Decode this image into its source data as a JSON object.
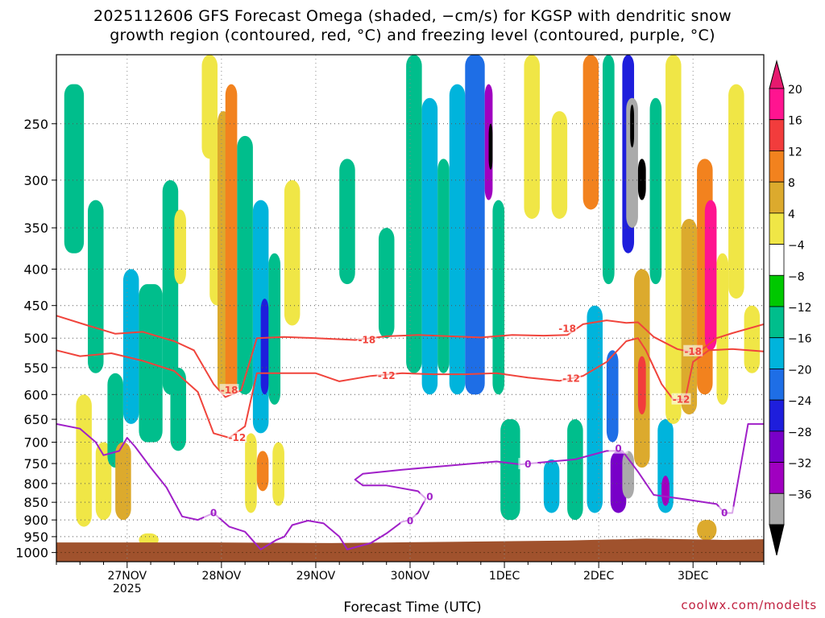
{
  "title_line1": "2025112606 GFS Forecast Omega (shaded, −cm/s) for KGSP with dendritic snow",
  "title_line2": "growth region (contoured, red, °C) and freezing level (contoured, purple, °C)",
  "credit": "coolwx.com/modelts",
  "colors": {
    "ground": "#a0522d",
    "dendritic_contour": "#f0443c",
    "freezing_contour": "#a020c8",
    "grid": "#555555"
  },
  "chart_data": {
    "type": "heatmap",
    "title": "2025112606 GFS Forecast Omega (shaded, −cm/s) for KGSP with dendritic snow growth region (contoured, red, °C) and freezing level (contoured, purple, °C)",
    "xlabel": "Forecast Time (UTC)",
    "ylabel": "",
    "grid": true,
    "y_axis": {
      "unit": "hPa",
      "inverted": true,
      "scale": "log",
      "ticks": [
        250,
        300,
        350,
        400,
        450,
        500,
        550,
        600,
        650,
        700,
        750,
        800,
        850,
        900,
        950,
        1000
      ]
    },
    "x_axis": {
      "unit": "hours since 2025-11-26 06 UTC",
      "range": [
        0,
        180
      ],
      "ticks": [
        {
          "hour": 18,
          "label": "27NOV",
          "sublabel": "2025"
        },
        {
          "hour": 42,
          "label": "28NOV"
        },
        {
          "hour": 66,
          "label": "29NOV"
        },
        {
          "hour": 90,
          "label": "30NOV"
        },
        {
          "hour": 114,
          "label": "1DEC"
        },
        {
          "hour": 138,
          "label": "2DEC"
        },
        {
          "hour": 162,
          "label": "3DEC"
        }
      ]
    },
    "colorbar": {
      "levels": [
        {
          "label": "20",
          "color": "#ff1490"
        },
        {
          "label": "16",
          "color": "#f23c3c"
        },
        {
          "label": "12",
          "color": "#f2821e"
        },
        {
          "label": "8",
          "color": "#dcaa2d"
        },
        {
          "label": "4",
          "color": "#f0e646"
        },
        {
          "label": "−4",
          "color": "#ffffff"
        },
        {
          "label": "−8",
          "color": "#00c800"
        },
        {
          "label": "−12",
          "color": "#00be8c"
        },
        {
          "label": "−16",
          "color": "#00b4dc"
        },
        {
          "label": "−20",
          "color": "#1e6ee6"
        },
        {
          "label": "−24",
          "color": "#1e1edc"
        },
        {
          "label": "−28",
          "color": "#7800c8"
        },
        {
          "label": "−32",
          "color": "#a000c0"
        },
        {
          "label": "−36",
          "color": "#aaaaaa"
        }
      ],
      "arrow_top_color": "#e6196e",
      "arrow_bottom_color": "#000000"
    },
    "omega_cells": [
      {
        "t0": 2,
        "t1": 7,
        "p0": 220,
        "p1": 380,
        "value": -8
      },
      {
        "t0": 5,
        "t1": 9,
        "p0": 600,
        "p1": 920,
        "value": 6
      },
      {
        "t0": 8,
        "t1": 12,
        "p0": 320,
        "p1": 560,
        "value": -8
      },
      {
        "t0": 10,
        "t1": 14,
        "p0": 700,
        "p1": 900,
        "value": 6
      },
      {
        "t0": 13,
        "t1": 17,
        "p0": 560,
        "p1": 760,
        "value": -10
      },
      {
        "t0": 15,
        "t1": 19,
        "p0": 700,
        "p1": 900,
        "value": 9
      },
      {
        "t0": 17,
        "t1": 21,
        "p0": 400,
        "p1": 660,
        "value": -12
      },
      {
        "t0": 21,
        "t1": 27,
        "p0": 420,
        "p1": 700,
        "value": -9
      },
      {
        "t0": 21,
        "t1": 26,
        "p0": 940,
        "p1": 980,
        "value": 6
      },
      {
        "t0": 27,
        "t1": 31,
        "p0": 300,
        "p1": 600,
        "value": -8
      },
      {
        "t0": 29,
        "t1": 33,
        "p0": 550,
        "p1": 720,
        "value": -8
      },
      {
        "t0": 30,
        "t1": 33,
        "p0": 330,
        "p1": 420,
        "value": 5
      },
      {
        "t0": 37,
        "t1": 41,
        "p0": 200,
        "p1": 280,
        "value": 5
      },
      {
        "t0": 39,
        "t1": 43,
        "p0": 250,
        "p1": 450,
        "value": 6
      },
      {
        "t0": 41,
        "t1": 44,
        "p0": 240,
        "p1": 600,
        "value": 10
      },
      {
        "t0": 43,
        "t1": 46,
        "p0": 220,
        "p1": 600,
        "value": 14
      },
      {
        "t0": 46,
        "t1": 50,
        "p0": 260,
        "p1": 600,
        "value": -8
      },
      {
        "t0": 50,
        "t1": 54,
        "p0": 320,
        "p1": 680,
        "value": -14
      },
      {
        "t0": 52,
        "t1": 54,
        "p0": 440,
        "p1": 600,
        "value": -22
      },
      {
        "t0": 54,
        "t1": 57,
        "p0": 380,
        "p1": 620,
        "value": -11
      },
      {
        "t0": 48,
        "t1": 51,
        "p0": 680,
        "p1": 880,
        "value": 6
      },
      {
        "t0": 51,
        "t1": 54,
        "p0": 720,
        "p1": 820,
        "value": 12
      },
      {
        "t0": 55,
        "t1": 58,
        "p0": 700,
        "p1": 860,
        "value": 6
      },
      {
        "t0": 58,
        "t1": 62,
        "p0": 300,
        "p1": 480,
        "value": 6
      },
      {
        "t0": 72,
        "t1": 76,
        "p0": 280,
        "p1": 420,
        "value": -8
      },
      {
        "t0": 82,
        "t1": 86,
        "p0": 350,
        "p1": 500,
        "value": -9
      },
      {
        "t0": 89,
        "t1": 93,
        "p0": 200,
        "p1": 560,
        "value": -10
      },
      {
        "t0": 93,
        "t1": 97,
        "p0": 230,
        "p1": 600,
        "value": -12
      },
      {
        "t0": 97,
        "t1": 100,
        "p0": 280,
        "p1": 560,
        "value": -11
      },
      {
        "t0": 100,
        "t1": 104,
        "p0": 220,
        "p1": 600,
        "value": -13
      },
      {
        "t0": 104,
        "t1": 109,
        "p0": 200,
        "p1": 600,
        "value": -16
      },
      {
        "t0": 109,
        "t1": 111,
        "p0": 220,
        "p1": 320,
        "value": -30
      },
      {
        "t0": 110,
        "t1": 111,
        "p0": 250,
        "p1": 290,
        "value": -40
      },
      {
        "t0": 111,
        "t1": 114,
        "p0": 320,
        "p1": 600,
        "value": -9
      },
      {
        "t0": 113,
        "t1": 118,
        "p0": 650,
        "p1": 900,
        "value": -8
      },
      {
        "t0": 119,
        "t1": 123,
        "p0": 200,
        "p1": 340,
        "value": 5
      },
      {
        "t0": 126,
        "t1": 130,
        "p0": 240,
        "p1": 340,
        "value": 6
      },
      {
        "t0": 124,
        "t1": 128,
        "p0": 740,
        "p1": 880,
        "value": -12
      },
      {
        "t0": 130,
        "t1": 134,
        "p0": 650,
        "p1": 900,
        "value": -9
      },
      {
        "t0": 134,
        "t1": 138,
        "p0": 200,
        "p1": 330,
        "value": 13
      },
      {
        "t0": 135,
        "t1": 139,
        "p0": 450,
        "p1": 880,
        "value": -12
      },
      {
        "t0": 139,
        "t1": 142,
        "p0": 200,
        "p1": 420,
        "value": -9
      },
      {
        "t0": 140,
        "t1": 143,
        "p0": 520,
        "p1": 700,
        "value": -18
      },
      {
        "t0": 141,
        "t1": 145,
        "p0": 720,
        "p1": 880,
        "value": -26
      },
      {
        "t0": 144,
        "t1": 147,
        "p0": 200,
        "p1": 380,
        "value": -22
      },
      {
        "t0": 145,
        "t1": 148,
        "p0": 230,
        "p1": 350,
        "value": -33
      },
      {
        "t0": 146,
        "t1": 147,
        "p0": 235,
        "p1": 270,
        "value": -40
      },
      {
        "t0": 144,
        "t1": 147,
        "p0": 720,
        "p1": 840,
        "value": -34
      },
      {
        "t0": 148,
        "t1": 150,
        "p0": 280,
        "p1": 320,
        "value": -40
      },
      {
        "t0": 147,
        "t1": 151,
        "p0": 400,
        "p1": 760,
        "value": 9
      },
      {
        "t0": 148,
        "t1": 150,
        "p0": 530,
        "p1": 640,
        "value": 18
      },
      {
        "t0": 151,
        "t1": 154,
        "p0": 230,
        "p1": 420,
        "value": -10
      },
      {
        "t0": 153,
        "t1": 157,
        "p0": 650,
        "p1": 880,
        "value": -14
      },
      {
        "t0": 154,
        "t1": 156,
        "p0": 780,
        "p1": 860,
        "value": -30
      },
      {
        "t0": 155,
        "t1": 159,
        "p0": 200,
        "p1": 660,
        "value": 7
      },
      {
        "t0": 159,
        "t1": 163,
        "p0": 340,
        "p1": 640,
        "value": 10
      },
      {
        "t0": 163,
        "t1": 167,
        "p0": 280,
        "p1": 600,
        "value": 14
      },
      {
        "t0": 165,
        "t1": 168,
        "p0": 320,
        "p1": 520,
        "value": 21
      },
      {
        "t0": 168,
        "t1": 171,
        "p0": 380,
        "p1": 620,
        "value": 6
      },
      {
        "t0": 171,
        "t1": 175,
        "p0": 220,
        "p1": 440,
        "value": 5
      },
      {
        "t0": 163,
        "t1": 168,
        "p0": 900,
        "p1": 960,
        "value": 9
      },
      {
        "t0": 175,
        "t1": 179,
        "p0": 450,
        "p1": 560,
        "value": 5
      }
    ],
    "dendritic_contours": [
      {
        "label": "-18",
        "points": [
          [
            0,
            465
          ],
          [
            8,
            480
          ],
          [
            15,
            493
          ],
          [
            22,
            490
          ],
          [
            30,
            505
          ],
          [
            35,
            520
          ],
          [
            40,
            580
          ],
          [
            43,
            605
          ],
          [
            47,
            592
          ],
          [
            51,
            500
          ],
          [
            58,
            498
          ],
          [
            66,
            500
          ],
          [
            76,
            503
          ],
          [
            84,
            497
          ],
          [
            92,
            495
          ],
          [
            100,
            497
          ],
          [
            108,
            499
          ],
          [
            116,
            495
          ],
          [
            124,
            496
          ],
          [
            130,
            495
          ],
          [
            134,
            478
          ],
          [
            140,
            472
          ],
          [
            145,
            476
          ],
          [
            148,
            475
          ],
          [
            152,
            498
          ],
          [
            158,
            518
          ],
          [
            163,
            525
          ],
          [
            168,
            500
          ],
          [
            172,
            492
          ],
          [
            180,
            478
          ]
        ],
        "labels_at": [
          [
            44,
            592
          ],
          [
            79,
            503
          ],
          [
            130,
            485
          ],
          [
            162,
            522
          ]
        ]
      },
      {
        "label": "-12",
        "points": [
          [
            0,
            520
          ],
          [
            6,
            530
          ],
          [
            14,
            525
          ],
          [
            22,
            538
          ],
          [
            30,
            556
          ],
          [
            36,
            595
          ],
          [
            40,
            680
          ],
          [
            44,
            690
          ],
          [
            48,
            665
          ],
          [
            51,
            560
          ],
          [
            58,
            560
          ],
          [
            66,
            560
          ],
          [
            72,
            575
          ],
          [
            80,
            565
          ],
          [
            88,
            560
          ],
          [
            96,
            562
          ],
          [
            104,
            562
          ],
          [
            112,
            560
          ],
          [
            120,
            568
          ],
          [
            128,
            574
          ],
          [
            134,
            565
          ],
          [
            140,
            540
          ],
          [
            145,
            505
          ],
          [
            148,
            500
          ],
          [
            150,
            520
          ],
          [
            154,
            580
          ],
          [
            157,
            610
          ],
          [
            160,
            610
          ],
          [
            162,
            540
          ],
          [
            166,
            520
          ],
          [
            172,
            518
          ],
          [
            180,
            522
          ]
        ],
        "labels_at": [
          [
            46,
            690
          ],
          [
            84,
            565
          ],
          [
            131,
            570
          ],
          [
            159,
            610
          ]
        ]
      }
    ],
    "freezing_level_contour": {
      "label": "0",
      "points": [
        [
          0,
          660
        ],
        [
          6,
          670
        ],
        [
          10,
          700
        ],
        [
          12,
          730
        ],
        [
          16,
          720
        ],
        [
          18,
          690
        ],
        [
          20,
          710
        ],
        [
          24,
          760
        ],
        [
          28,
          810
        ],
        [
          32,
          890
        ],
        [
          36,
          900
        ],
        [
          40,
          880
        ],
        [
          44,
          920
        ],
        [
          48,
          935
        ],
        [
          52,
          990
        ],
        [
          56,
          960
        ],
        [
          58,
          950
        ],
        [
          60,
          915
        ],
        [
          64,
          902
        ],
        [
          68,
          910
        ],
        [
          72,
          950
        ],
        [
          74,
          990
        ],
        [
          80,
          970
        ],
        [
          84,
          940
        ],
        [
          88,
          905
        ],
        [
          90,
          900
        ],
        [
          92,
          880
        ],
        [
          94,
          840
        ],
        [
          92,
          820
        ],
        [
          84,
          805
        ],
        [
          78,
          805
        ],
        [
          76,
          790
        ],
        [
          78,
          775
        ],
        [
          88,
          765
        ],
        [
          100,
          755
        ],
        [
          112,
          745
        ],
        [
          118,
          752
        ],
        [
          126,
          745
        ],
        [
          132,
          740
        ],
        [
          140,
          720
        ],
        [
          144,
          720
        ],
        [
          148,
          770
        ],
        [
          152,
          830
        ],
        [
          160,
          842
        ],
        [
          168,
          855
        ],
        [
          170,
          880
        ],
        [
          172,
          880
        ],
        [
          176,
          660
        ],
        [
          180,
          660
        ]
      ],
      "labels_at": [
        [
          40,
          880
        ],
        [
          90,
          903
        ],
        [
          95,
          835
        ],
        [
          120,
          752
        ],
        [
          143,
          715
        ],
        [
          170,
          880
        ]
      ]
    }
  }
}
